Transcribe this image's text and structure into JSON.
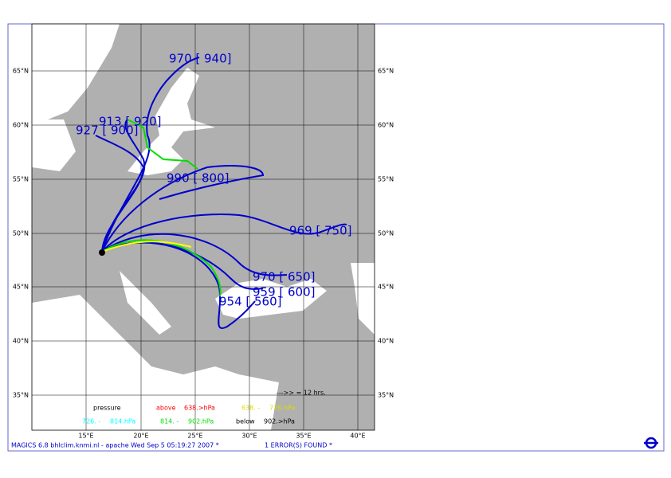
{
  "lat_labels": [
    "65°N",
    "60°N",
    "55°N",
    "50°N",
    "45°N",
    "40°N",
    "35°N"
  ],
  "lon_labels": [
    "15°E",
    "20°E",
    "25°E",
    "30°E",
    "35°E",
    "40°E"
  ],
  "trajectory_labels": [
    "970 [ 940]",
    "913 [ 920]",
    "927 [ 900]",
    "990 [ 800]",
    "969 [ 750]",
    "970 [ 650]",
    "959 [ 600]",
    "954 [ 560]"
  ],
  "legend": {
    "title": "pressure",
    "items": [
      {
        "name": "above",
        "range": "638.>hPa",
        "color": "#ff0000"
      },
      {
        "name": "638. -",
        "range": "726.hPa",
        "color": "#ffff00"
      },
      {
        "name": "726. -",
        "range": "814.hPa",
        "color": "#00ffff"
      },
      {
        "name": "814. -",
        "range": "902.hPa",
        "color": "#00dd00"
      },
      {
        "name": "below",
        "range": "902.>hPa",
        "color": "#0000ff"
      }
    ]
  },
  "time_note": "--->> = 12 hrs.",
  "footer": {
    "left": "MAGICS 6.8 bhlclim.knmi.nl - apache Wed Sep  5 05:19:27 2007 *",
    "right": "1 ERROR(S) FOUND *"
  }
}
